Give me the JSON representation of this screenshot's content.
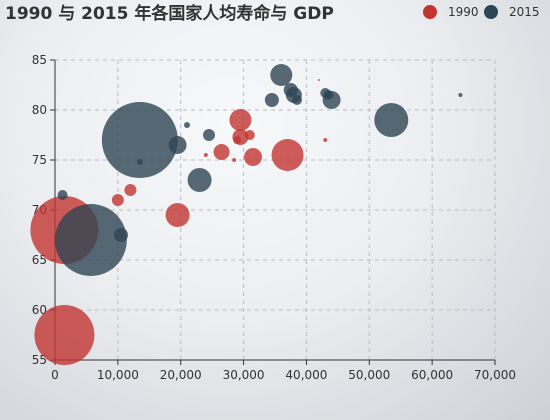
{
  "chart_data": {
    "type": "scatter",
    "title": "1990 与 2015 年各国家人均寿命与 GDP",
    "xlim": [
      0,
      70000
    ],
    "ylim": [
      55,
      85
    ],
    "x_ticks": [
      0,
      10000,
      20000,
      30000,
      40000,
      50000,
      60000,
      70000
    ],
    "x_tick_labels": [
      "0",
      "10,000",
      "20,000",
      "30,000",
      "40,000",
      "50,000",
      "60,000",
      "70,000"
    ],
    "y_ticks": [
      55,
      60,
      65,
      70,
      75,
      80,
      85
    ],
    "y_tick_labels": [
      "55",
      "60",
      "65",
      "70",
      "75",
      "80",
      "85"
    ],
    "grid": true,
    "legend_position": "top-right",
    "colors": {
      "series_1990": "#c23531",
      "series_2015": "#2f4554",
      "axis": "#333333",
      "grid": "#b9bcc2",
      "title": "#333333"
    },
    "series": [
      {
        "name": "1990",
        "color": "#c23531",
        "points": [
          {
            "x": 1500,
            "y": 57.5,
            "size": 30
          },
          {
            "x": 1500,
            "y": 68,
            "size": 34
          },
          {
            "x": 10000,
            "y": 71,
            "size": 6
          },
          {
            "x": 12000,
            "y": 72,
            "size": 6
          },
          {
            "x": 19500,
            "y": 69.5,
            "size": 12
          },
          {
            "x": 24000,
            "y": 75.5,
            "size": 2
          },
          {
            "x": 26500,
            "y": 75.8,
            "size": 8
          },
          {
            "x": 28500,
            "y": 75,
            "size": 2
          },
          {
            "x": 29000,
            "y": 77,
            "size": 4
          },
          {
            "x": 29500,
            "y": 77.3,
            "size": 8
          },
          {
            "x": 29500,
            "y": 79,
            "size": 11
          },
          {
            "x": 31000,
            "y": 77.5,
            "size": 5
          },
          {
            "x": 31500,
            "y": 75.3,
            "size": 9
          },
          {
            "x": 37000,
            "y": 75.5,
            "size": 16
          },
          {
            "x": 42000,
            "y": 83,
            "size": 1
          },
          {
            "x": 43000,
            "y": 77,
            "size": 2
          }
        ]
      },
      {
        "name": "2015",
        "color": "#2f4554",
        "points": [
          {
            "x": 1200,
            "y": 71.5,
            "size": 5
          },
          {
            "x": 5700,
            "y": 67,
            "size": 36
          },
          {
            "x": 10500,
            "y": 67.5,
            "size": 7
          },
          {
            "x": 13500,
            "y": 77,
            "size": 38
          },
          {
            "x": 13500,
            "y": 74.8,
            "size": 3
          },
          {
            "x": 19500,
            "y": 76.5,
            "size": 9
          },
          {
            "x": 21000,
            "y": 78.5,
            "size": 3
          },
          {
            "x": 23000,
            "y": 73,
            "size": 12
          },
          {
            "x": 24500,
            "y": 77.5,
            "size": 6
          },
          {
            "x": 34500,
            "y": 81,
            "size": 7
          },
          {
            "x": 36000,
            "y": 83.5,
            "size": 11
          },
          {
            "x": 37500,
            "y": 82,
            "size": 7
          },
          {
            "x": 38000,
            "y": 81.5,
            "size": 8
          },
          {
            "x": 38500,
            "y": 81,
            "size": 5
          },
          {
            "x": 43000,
            "y": 81.7,
            "size": 5
          },
          {
            "x": 43500,
            "y": 81.5,
            "size": 5
          },
          {
            "x": 44000,
            "y": 81,
            "size": 9
          },
          {
            "x": 53500,
            "y": 79,
            "size": 17
          },
          {
            "x": 64500,
            "y": 81.5,
            "size": 2
          }
        ]
      }
    ]
  }
}
